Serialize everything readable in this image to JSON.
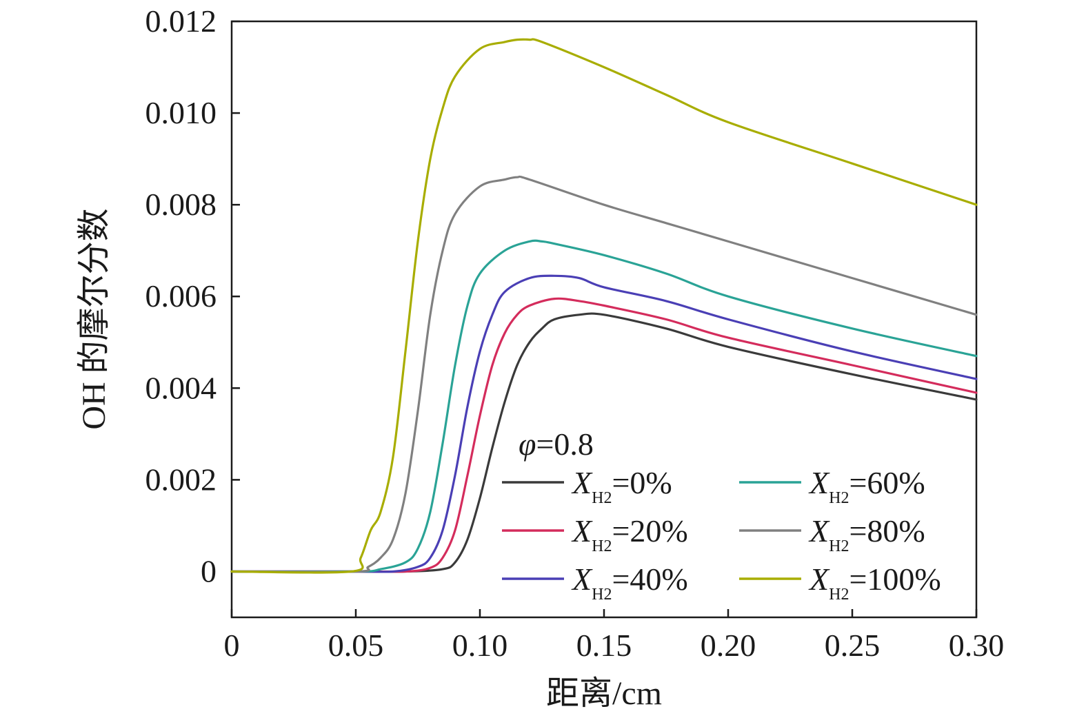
{
  "chart_data": {
    "type": "line",
    "xlabel": "距离/cm",
    "ylabel": "OH 的摩尔分数",
    "xlim": [
      0,
      0.3
    ],
    "ylim": [
      -0.001,
      0.012
    ],
    "x_ticks": [
      "0",
      "0.05",
      "0.10",
      "0.15",
      "0.20",
      "0.25",
      "0.30"
    ],
    "x_tick_values": [
      0,
      0.05,
      0.1,
      0.15,
      0.2,
      0.25,
      0.3
    ],
    "y_ticks": [
      "0",
      "0.002",
      "0.004",
      "0.006",
      "0.008",
      "0.010",
      "0.012"
    ],
    "y_tick_values": [
      0,
      0.002,
      0.004,
      0.006,
      0.008,
      0.01,
      0.012
    ],
    "grid": false,
    "legend_position": "bottom-right",
    "legend_title": {
      "symbol": "φ",
      "text": "=0.8"
    },
    "series": [
      {
        "name": "X_H2=0%",
        "legend_var": "X",
        "legend_sub": "H2",
        "legend_value": "=0%",
        "color": "#3a3a3a",
        "x": [
          0,
          0.05,
          0.07,
          0.085,
          0.09,
          0.095,
          0.1,
          0.105,
          0.11,
          0.115,
          0.12,
          0.125,
          0.13,
          0.14,
          0.15,
          0.175,
          0.2,
          0.25,
          0.3
        ],
        "y": [
          0,
          0,
          0,
          5e-05,
          0.0002,
          0.0007,
          0.0016,
          0.0027,
          0.0037,
          0.0045,
          0.005,
          0.0053,
          0.0055,
          0.0056,
          0.0056,
          0.0053,
          0.0049,
          0.0043,
          0.00375
        ]
      },
      {
        "name": "X_H2=20%",
        "legend_var": "X",
        "legend_sub": "H2",
        "legend_value": "=20%",
        "color": "#d42c5c",
        "x": [
          0,
          0.05,
          0.07,
          0.08,
          0.085,
          0.09,
          0.095,
          0.1,
          0.105,
          0.11,
          0.115,
          0.12,
          0.13,
          0.14,
          0.15,
          0.175,
          0.2,
          0.25,
          0.3
        ],
        "y": [
          0,
          0,
          0,
          8e-05,
          0.0003,
          0.0009,
          0.0021,
          0.0034,
          0.0045,
          0.0052,
          0.0056,
          0.0058,
          0.00595,
          0.0059,
          0.0058,
          0.0055,
          0.0051,
          0.0045,
          0.0039
        ]
      },
      {
        "name": "X_H2=40%",
        "legend_var": "X",
        "legend_sub": "H2",
        "legend_value": "=40%",
        "color": "#4a3fb5",
        "x": [
          0,
          0.05,
          0.065,
          0.075,
          0.08,
          0.085,
          0.09,
          0.095,
          0.1,
          0.105,
          0.11,
          0.12,
          0.13,
          0.14,
          0.15,
          0.175,
          0.2,
          0.25,
          0.3
        ],
        "y": [
          0,
          0,
          0,
          0.0001,
          0.0003,
          0.0009,
          0.0021,
          0.0036,
          0.0048,
          0.0056,
          0.0061,
          0.0064,
          0.00645,
          0.0064,
          0.0062,
          0.0059,
          0.0055,
          0.0048,
          0.0042
        ]
      },
      {
        "name": "X_H2=60%",
        "legend_var": "X",
        "legend_sub": "H2",
        "legend_value": "=60%",
        "color": "#2aa396",
        "x": [
          0,
          0.05,
          0.06,
          0.07,
          0.075,
          0.08,
          0.085,
          0.09,
          0.095,
          0.1,
          0.11,
          0.12,
          0.125,
          0.13,
          0.15,
          0.175,
          0.2,
          0.25,
          0.3
        ],
        "y": [
          0,
          0,
          5e-05,
          0.0002,
          0.0005,
          0.0013,
          0.0028,
          0.0045,
          0.0058,
          0.0065,
          0.007,
          0.0072,
          0.0072,
          0.00715,
          0.0069,
          0.0065,
          0.006,
          0.0053,
          0.0047
        ]
      },
      {
        "name": "X_H2=80%",
        "legend_var": "X",
        "legend_sub": "H2",
        "legend_value": "=80%",
        "color": "#808080",
        "x": [
          0,
          0.05,
          0.055,
          0.06,
          0.065,
          0.07,
          0.075,
          0.08,
          0.085,
          0.09,
          0.1,
          0.11,
          0.115,
          0.12,
          0.15,
          0.175,
          0.2,
          0.25,
          0.3
        ],
        "y": [
          0,
          0,
          0.0001,
          0.0003,
          0.0007,
          0.0017,
          0.0035,
          0.0056,
          0.007,
          0.0078,
          0.0084,
          0.00855,
          0.0086,
          0.00855,
          0.008,
          0.0076,
          0.0072,
          0.0064,
          0.0056
        ]
      },
      {
        "name": "X_H2=100%",
        "legend_var": "X",
        "legend_sub": "H2",
        "legend_value": "=100%",
        "color": "#a8ad00",
        "x": [
          0,
          0.048,
          0.052,
          0.056,
          0.06,
          0.065,
          0.07,
          0.075,
          0.08,
          0.085,
          0.09,
          0.1,
          0.11,
          0.115,
          0.12,
          0.125,
          0.15,
          0.175,
          0.2,
          0.25,
          0.3
        ],
        "y": [
          0,
          0,
          0.0003,
          0.0009,
          0.0013,
          0.0025,
          0.0048,
          0.0072,
          0.009,
          0.0101,
          0.0108,
          0.0114,
          0.01155,
          0.0116,
          0.0116,
          0.01155,
          0.011,
          0.0104,
          0.0098,
          0.0089,
          0.008
        ]
      }
    ]
  }
}
